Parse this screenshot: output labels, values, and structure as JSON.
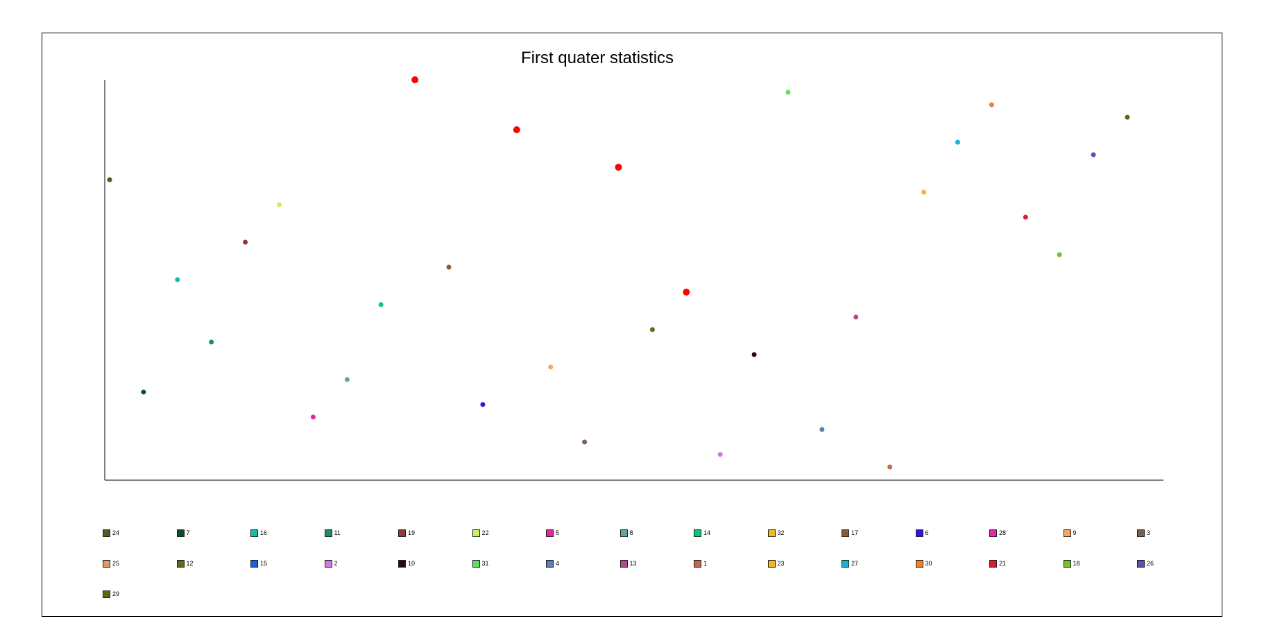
{
  "chart_data": {
    "type": "scatter",
    "title": "First quater statistics",
    "xlabel": "",
    "ylabel": "",
    "grid": false,
    "legend_position": "bottom",
    "points": [
      {
        "name": "24",
        "x": 1,
        "y": 24,
        "color": "#4a5d23",
        "highlight": false
      },
      {
        "name": "7",
        "x": 2,
        "y": 7,
        "color": "#0b4f2a",
        "highlight": false
      },
      {
        "name": "16",
        "x": 3,
        "y": 16,
        "color": "#17bca5",
        "highlight": false
      },
      {
        "name": "11",
        "x": 4,
        "y": 11,
        "color": "#1e8a6e",
        "highlight": false
      },
      {
        "name": "19",
        "x": 5,
        "y": 19,
        "color": "#8c3a3a",
        "highlight": false
      },
      {
        "name": "22",
        "x": 6,
        "y": 22,
        "color": "#c8f060",
        "highlight": false
      },
      {
        "name": "5",
        "x": 7,
        "y": 5,
        "color": "#e0289e",
        "highlight": false
      },
      {
        "name": "8",
        "x": 8,
        "y": 8,
        "color": "#5aa8a8",
        "highlight": false
      },
      {
        "name": "14",
        "x": 9,
        "y": 14,
        "color": "#12c47a",
        "highlight": false
      },
      {
        "name": "32",
        "x": 10,
        "y": 32,
        "color": "#ff0000",
        "highlight": true
      },
      {
        "name": "17",
        "x": 11,
        "y": 17,
        "color": "#8a5a3a",
        "highlight": false
      },
      {
        "name": "6",
        "x": 12,
        "y": 6,
        "color": "#3a10e0",
        "highlight": false
      },
      {
        "name": "28",
        "x": 13,
        "y": 28,
        "color": "#ff0000",
        "highlight": true
      },
      {
        "name": "9",
        "x": 14,
        "y": 9,
        "color": "#f0a868",
        "highlight": false
      },
      {
        "name": "3",
        "x": 15,
        "y": 3,
        "color": "#7a6050",
        "highlight": false
      },
      {
        "name": "25",
        "x": 16,
        "y": 25,
        "color": "#ff0000",
        "highlight": true
      },
      {
        "name": "12",
        "x": 17,
        "y": 12,
        "color": "#5a6a1e",
        "highlight": false
      },
      {
        "name": "15",
        "x": 18,
        "y": 15,
        "color": "#ff0000",
        "highlight": true
      },
      {
        "name": "2",
        "x": 19,
        "y": 2,
        "color": "#d078e8",
        "highlight": false
      },
      {
        "name": "10",
        "x": 20,
        "y": 10,
        "color": "#2a0a0a",
        "highlight": false
      },
      {
        "name": "31",
        "x": 21,
        "y": 31,
        "color": "#60e060",
        "highlight": false
      },
      {
        "name": "4",
        "x": 22,
        "y": 4,
        "color": "#5a80b0",
        "highlight": false
      },
      {
        "name": "13",
        "x": 23,
        "y": 13,
        "color": "#b04a8a",
        "highlight": false
      },
      {
        "name": "1",
        "x": 24,
        "y": 1,
        "color": "#c06a50",
        "highlight": false
      },
      {
        "name": "23",
        "x": 25,
        "y": 23,
        "color": "#f0b828",
        "highlight": false
      },
      {
        "name": "27",
        "x": 26,
        "y": 27,
        "color": "#18b0d0",
        "highlight": false
      },
      {
        "name": "30",
        "x": 27,
        "y": 30,
        "color": "#f08030",
        "highlight": false
      },
      {
        "name": "21",
        "x": 28,
        "y": 21,
        "color": "#e01830",
        "highlight": false
      },
      {
        "name": "18",
        "x": 29,
        "y": 18,
        "color": "#70c030",
        "highlight": false
      },
      {
        "name": "26",
        "x": 30,
        "y": 26,
        "color": "#6050b0",
        "highlight": false
      },
      {
        "name": "29",
        "x": 31,
        "y": 29,
        "color": "#5a6a10",
        "highlight": false
      }
    ],
    "legend": [
      {
        "label": "24",
        "color": "#4a5d23"
      },
      {
        "label": "7",
        "color": "#0b4f2a"
      },
      {
        "label": "16",
        "color": "#17bca5"
      },
      {
        "label": "11",
        "color": "#1e8a6e"
      },
      {
        "label": "19",
        "color": "#8c3a3a"
      },
      {
        "label": "22",
        "color": "#c8f060"
      },
      {
        "label": "5",
        "color": "#e0289e"
      },
      {
        "label": "8",
        "color": "#5aa8a8"
      },
      {
        "label": "14",
        "color": "#12c47a"
      },
      {
        "label": "32",
        "color": "#f0b828"
      },
      {
        "label": "17",
        "color": "#8a5a3a"
      },
      {
        "label": "6",
        "color": "#3a10e0"
      },
      {
        "label": "28",
        "color": "#e028b0"
      },
      {
        "label": "9",
        "color": "#f0a868"
      },
      {
        "label": "3",
        "color": "#7a6050"
      },
      {
        "label": "25",
        "color": "#e09868"
      },
      {
        "label": "12",
        "color": "#5a6a1e"
      },
      {
        "label": "15",
        "color": "#1860e0"
      },
      {
        "label": "2",
        "color": "#d078e8"
      },
      {
        "label": "10",
        "color": "#2a0a0a"
      },
      {
        "label": "31",
        "color": "#60e060"
      },
      {
        "label": "4",
        "color": "#5a80b0"
      },
      {
        "label": "13",
        "color": "#b04a8a"
      },
      {
        "label": "1",
        "color": "#c06a50"
      },
      {
        "label": "23",
        "color": "#f0b828"
      },
      {
        "label": "27",
        "color": "#18b0d0"
      },
      {
        "label": "30",
        "color": "#f08030"
      },
      {
        "label": "21",
        "color": "#e01830"
      },
      {
        "label": "18",
        "color": "#70c030"
      },
      {
        "label": "26",
        "color": "#6050b0"
      },
      {
        "label": "29",
        "color": "#5a6a10"
      }
    ]
  }
}
